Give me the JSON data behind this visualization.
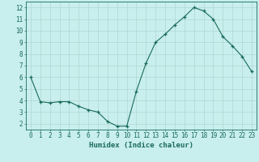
{
  "x": [
    0,
    1,
    2,
    3,
    4,
    5,
    6,
    7,
    8,
    9,
    10,
    11,
    12,
    13,
    14,
    15,
    16,
    17,
    18,
    19,
    20,
    21,
    22,
    23
  ],
  "y": [
    6.0,
    3.9,
    3.8,
    3.9,
    3.9,
    3.5,
    3.2,
    3.0,
    2.2,
    1.8,
    1.8,
    4.8,
    7.2,
    9.0,
    9.7,
    10.5,
    11.2,
    12.0,
    11.7,
    11.0,
    9.5,
    8.7,
    7.8,
    6.5
  ],
  "xlabel": "Humidex (Indice chaleur)",
  "ylim": [
    1.5,
    12.5
  ],
  "xlim": [
    -0.5,
    23.5
  ],
  "yticks": [
    2,
    3,
    4,
    5,
    6,
    7,
    8,
    9,
    10,
    11,
    12
  ],
  "xticks": [
    0,
    1,
    2,
    3,
    4,
    5,
    6,
    7,
    8,
    9,
    10,
    11,
    12,
    13,
    14,
    15,
    16,
    17,
    18,
    19,
    20,
    21,
    22,
    23
  ],
  "line_color": "#1a6b5a",
  "marker": "+",
  "bg_color": "#c8eeee",
  "grid_color": "#b0d8d0",
  "axis_color": "#1a6b5a",
  "tick_color": "#1a6b5a",
  "xlabel_fontsize": 6.5,
  "tick_fontsize": 5.5
}
